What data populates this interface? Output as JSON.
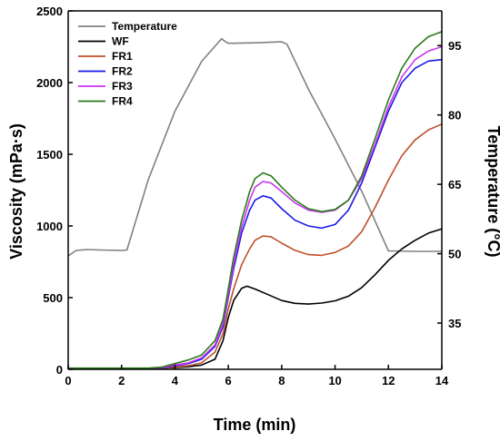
{
  "chart_data": {
    "type": "line",
    "xlabel": "Time (min)",
    "ylabel": "Viscosity (mPa·s)",
    "y2label": "Temperature (°C)",
    "xlim": [
      0,
      14
    ],
    "ylim": [
      0,
      2500
    ],
    "y2lim": [
      25,
      102.5
    ],
    "x_ticks": [
      0,
      2,
      4,
      6,
      8,
      10,
      12,
      14
    ],
    "x_tick_labels": [
      "0",
      "2",
      "4",
      "6",
      "8",
      "10",
      "12",
      "14"
    ],
    "y_ticks": [
      0,
      500,
      1000,
      1500,
      2000,
      2500
    ],
    "y_tick_labels": [
      "0",
      "500",
      "1000",
      "1500",
      "2000",
      "2500"
    ],
    "y2_ticks": [
      35,
      50,
      65,
      80,
      95
    ],
    "y2_tick_labels": [
      "35",
      "50",
      "65",
      "80",
      "95"
    ],
    "legend": {
      "position": "top-left"
    },
    "series": [
      {
        "name": "Temperature",
        "axis": "right",
        "color": "#808080",
        "x": [
          0,
          0.3,
          0.7,
          1.2,
          2.0,
          2.2,
          3.0,
          4.0,
          5.0,
          5.75,
          5.85,
          6.0,
          7.0,
          8.0,
          8.2,
          9.0,
          10.0,
          11.0,
          12.0,
          13.0,
          14.0
        ],
        "y": [
          49.5,
          50.7,
          50.9,
          50.8,
          50.7,
          50.8,
          66.0,
          80.8,
          91.6,
          96.5,
          96.0,
          95.5,
          95.6,
          95.8,
          95.3,
          85.6,
          74.8,
          63.5,
          50.6,
          50.5,
          50.5
        ]
      },
      {
        "name": "WF",
        "axis": "left",
        "color": "#000000",
        "x": [
          0,
          2,
          3,
          3.5,
          4,
          4.5,
          5,
          5.5,
          5.8,
          6,
          6.2,
          6.5,
          6.7,
          7,
          7.5,
          8,
          8.5,
          9,
          9.5,
          10,
          10.5,
          11,
          11.5,
          12,
          12.5,
          13,
          13.5,
          14
        ],
        "y": [
          5,
          5,
          5,
          8,
          12,
          18,
          30,
          70,
          200,
          360,
          480,
          565,
          580,
          560,
          520,
          480,
          460,
          455,
          462,
          478,
          510,
          570,
          660,
          760,
          840,
          900,
          950,
          980
        ]
      },
      {
        "name": "FR1",
        "axis": "left",
        "color": "#c0502a",
        "x": [
          0,
          2,
          3,
          3.5,
          4,
          4.5,
          5,
          5.5,
          5.8,
          6,
          6.2,
          6.5,
          6.8,
          7,
          7.3,
          7.6,
          8,
          8.5,
          9,
          9.5,
          10,
          10.5,
          11,
          11.5,
          12,
          12.5,
          13,
          13.5,
          14
        ],
        "y": [
          5,
          5,
          5,
          8,
          15,
          25,
          45,
          120,
          250,
          420,
          560,
          730,
          840,
          900,
          930,
          925,
          880,
          830,
          800,
          795,
          815,
          860,
          960,
          1130,
          1320,
          1490,
          1600,
          1670,
          1710
        ]
      },
      {
        "name": "FR2",
        "axis": "left",
        "color": "#1a1ae6",
        "x": [
          0,
          2,
          3,
          3.5,
          4,
          4.5,
          5,
          5.5,
          5.8,
          6,
          6.2,
          6.5,
          6.8,
          7,
          7.3,
          7.6,
          8,
          8.5,
          9,
          9.5,
          10,
          10.5,
          11,
          11.5,
          12,
          12.5,
          13,
          13.5,
          14
        ],
        "y": [
          5,
          5,
          5,
          10,
          25,
          40,
          70,
          160,
          300,
          500,
          700,
          950,
          1110,
          1180,
          1210,
          1195,
          1120,
          1040,
          1000,
          985,
          1010,
          1110,
          1300,
          1550,
          1800,
          2000,
          2100,
          2150,
          2160
        ]
      },
      {
        "name": "FR3",
        "axis": "left",
        "color": "#cc33ee",
        "x": [
          0,
          2,
          3,
          3.5,
          4,
          4.5,
          5,
          5.5,
          5.8,
          6,
          6.2,
          6.5,
          6.8,
          7,
          7.3,
          7.6,
          8,
          8.5,
          9,
          9.5,
          10,
          10.5,
          11,
          11.5,
          12,
          12.5,
          13,
          13.5,
          14
        ],
        "y": [
          5,
          5,
          5,
          12,
          30,
          45,
          80,
          170,
          320,
          520,
          730,
          990,
          1180,
          1270,
          1310,
          1300,
          1240,
          1160,
          1110,
          1095,
          1110,
          1180,
          1330,
          1570,
          1830,
          2040,
          2160,
          2220,
          2250
        ]
      },
      {
        "name": "FR4",
        "axis": "left",
        "color": "#2a7a1a",
        "x": [
          0,
          2,
          3,
          3.5,
          4,
          4.5,
          5,
          5.5,
          5.8,
          6,
          6.2,
          6.5,
          6.8,
          7,
          7.3,
          7.6,
          8,
          8.5,
          9,
          9.5,
          10,
          10.5,
          11,
          11.5,
          12,
          12.5,
          13,
          13.5,
          14
        ],
        "y": [
          8,
          8,
          8,
          15,
          40,
          65,
          100,
          200,
          350,
          560,
          780,
          1040,
          1240,
          1330,
          1370,
          1350,
          1270,
          1180,
          1120,
          1100,
          1115,
          1180,
          1350,
          1610,
          1880,
          2100,
          2240,
          2320,
          2355
        ]
      }
    ]
  }
}
